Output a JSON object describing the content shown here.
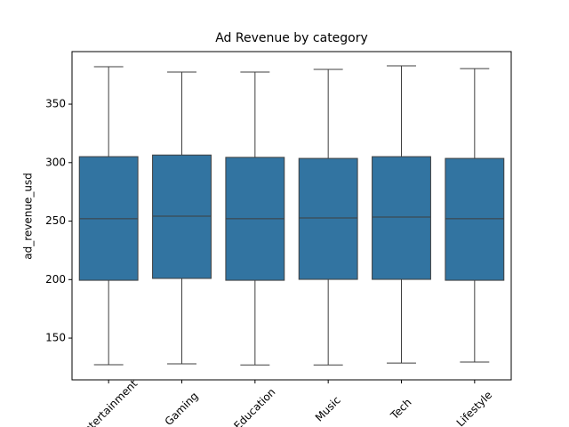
{
  "chart_data": {
    "type": "box",
    "title": "Ad Revenue by category",
    "y_label": "ad_revenue_usd",
    "categories": [
      "Entertainment",
      "Gaming",
      "Education",
      "Music",
      "Tech",
      "Lifestyle"
    ],
    "color": "#3274a1",
    "min": [
      127.2,
      128,
      127,
      127,
      128.7,
      129.5
    ],
    "q1": [
      199.4,
      201,
      199.4,
      200.2,
      200.2,
      199.4
    ],
    "median": [
      252,
      254.2,
      252,
      252.7,
      253.5,
      252
    ],
    "q3": [
      305.1,
      306.5,
      304.5,
      303.6,
      305.1,
      303.6
    ],
    "max": [
      382,
      377.4,
      377.4,
      379.7,
      382.7,
      380.4
    ],
    "ylim": [
      114.3,
      394.9
    ],
    "yticks": [
      150,
      200,
      250,
      300,
      350
    ]
  }
}
